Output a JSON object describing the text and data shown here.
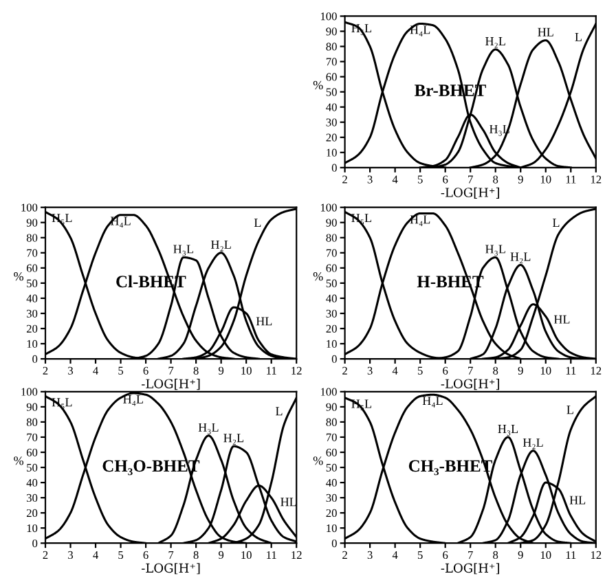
{
  "chart_data": [
    {
      "type": "line",
      "title": "Br-BHET",
      "xlabel": "-LOG[H⁺]",
      "ylabel": "%",
      "xlim": [
        2,
        12
      ],
      "ylim": [
        0,
        100
      ],
      "xticks": [
        2,
        3,
        4,
        5,
        6,
        7,
        8,
        9,
        10,
        11,
        12
      ],
      "yticks": [
        0,
        10,
        20,
        30,
        40,
        50,
        60,
        70,
        80,
        90,
        100
      ],
      "grid": false,
      "legend": false,
      "x": [
        2,
        2.5,
        3,
        3.5,
        4,
        4.5,
        5,
        5.5,
        6,
        6.5,
        7,
        7.5,
        8,
        8.5,
        9,
        9.5,
        10,
        10.5,
        11,
        11.5,
        12
      ],
      "series": [
        {
          "name": "H₅L",
          "color": "#000000",
          "values": [
            96,
            93,
            80,
            50,
            25,
            10,
            3,
            1,
            0,
            null,
            null,
            null,
            null,
            null,
            null,
            null,
            null,
            null,
            null,
            null,
            null
          ]
        },
        {
          "name": "H₄L",
          "color": "#000000",
          "values": [
            3,
            8,
            20,
            50,
            75,
            90,
            95,
            94,
            85,
            65,
            30,
            12,
            3,
            1,
            0,
            null,
            null,
            null,
            null,
            null,
            null
          ]
        },
        {
          "name": "H₃L",
          "color": "#000000",
          "values": [
            null,
            null,
            null,
            null,
            null,
            null,
            0,
            1,
            5,
            20,
            35,
            25,
            10,
            3,
            0,
            null,
            null,
            null,
            null,
            null,
            null
          ]
        },
        {
          "name": "H₂L",
          "color": "#000000",
          "values": [
            null,
            null,
            null,
            null,
            null,
            null,
            null,
            0,
            2,
            10,
            35,
            65,
            78,
            68,
            40,
            18,
            6,
            1,
            0,
            null,
            null
          ]
        },
        {
          "name": "HL",
          "color": "#000000",
          "values": [
            null,
            null,
            null,
            null,
            null,
            null,
            null,
            null,
            null,
            null,
            0,
            2,
            8,
            25,
            55,
            78,
            84,
            70,
            45,
            22,
            6
          ]
        },
        {
          "name": "L",
          "color": "#000000",
          "values": [
            null,
            null,
            null,
            null,
            null,
            null,
            null,
            null,
            null,
            null,
            null,
            null,
            null,
            null,
            0,
            3,
            12,
            28,
            50,
            78,
            95
          ]
        }
      ]
    },
    {
      "type": "line",
      "title": "Cl-BHET",
      "xlabel": "-LOG[H⁺]",
      "ylabel": "%",
      "xlim": [
        2,
        12
      ],
      "ylim": [
        0,
        100
      ],
      "xticks": [
        2,
        3,
        4,
        5,
        6,
        7,
        8,
        9,
        10,
        11,
        12
      ],
      "yticks": [
        0,
        10,
        20,
        30,
        40,
        50,
        60,
        70,
        80,
        90,
        100
      ],
      "grid": false,
      "legend": false,
      "x": [
        2,
        2.5,
        3,
        3.5,
        4,
        4.5,
        5,
        5.5,
        6,
        6.5,
        7,
        7.5,
        8,
        8.5,
        9,
        9.5,
        10,
        10.5,
        11,
        11.5,
        12
      ],
      "series": [
        {
          "name": "H₅L",
          "color": "#000000",
          "values": [
            97,
            92,
            80,
            55,
            30,
            12,
            4,
            1,
            0,
            null,
            null,
            null,
            null,
            null,
            null,
            null,
            null,
            null,
            null,
            null,
            null
          ]
        },
        {
          "name": "H₄L",
          "color": "#000000",
          "values": [
            3,
            8,
            20,
            45,
            70,
            88,
            95,
            95,
            88,
            72,
            50,
            28,
            12,
            4,
            1,
            0,
            null,
            null,
            null,
            null,
            null
          ]
        },
        {
          "name": "H₃L",
          "color": "#000000",
          "values": [
            null,
            null,
            null,
            null,
            null,
            null,
            null,
            0,
            2,
            10,
            35,
            67,
            65,
            40,
            15,
            4,
            1,
            0,
            null,
            null,
            null
          ]
        },
        {
          "name": "H₂L",
          "color": "#000000",
          "values": [
            null,
            null,
            null,
            null,
            null,
            null,
            null,
            null,
            null,
            0,
            2,
            10,
            35,
            60,
            70,
            55,
            25,
            8,
            2,
            0,
            null
          ]
        },
        {
          "name": "HL",
          "color": "#000000",
          "values": [
            null,
            null,
            null,
            null,
            null,
            null,
            null,
            null,
            null,
            null,
            null,
            0,
            1,
            5,
            18,
            34,
            30,
            12,
            3,
            1,
            0
          ]
        },
        {
          "name": "L",
          "color": "#000000",
          "values": [
            null,
            null,
            null,
            null,
            null,
            null,
            null,
            null,
            null,
            null,
            null,
            null,
            0,
            2,
            8,
            25,
            55,
            78,
            92,
            97,
            99
          ]
        }
      ]
    },
    {
      "type": "line",
      "title": "H-BHET",
      "xlabel": "-LOG[H⁺]",
      "ylabel": "%",
      "xlim": [
        2,
        12
      ],
      "ylim": [
        0,
        100
      ],
      "xticks": [
        2,
        3,
        4,
        5,
        6,
        7,
        8,
        9,
        10,
        11,
        12
      ],
      "yticks": [
        0,
        10,
        20,
        30,
        40,
        50,
        60,
        70,
        80,
        90,
        100
      ],
      "grid": false,
      "legend": false,
      "x": [
        2,
        2.5,
        3,
        3.5,
        4,
        4.5,
        5,
        5.5,
        6,
        6.5,
        7,
        7.5,
        8,
        8.5,
        9,
        9.5,
        10,
        10.5,
        11,
        11.5,
        12
      ],
      "series": [
        {
          "name": "H₅L",
          "color": "#000000",
          "values": [
            97,
            92,
            80,
            50,
            25,
            10,
            4,
            1,
            0,
            null,
            null,
            null,
            null,
            null,
            null,
            null,
            null,
            null,
            null,
            null,
            null
          ]
        },
        {
          "name": "H₄L",
          "color": "#000000",
          "values": [
            3,
            8,
            20,
            50,
            75,
            90,
            96,
            96,
            88,
            70,
            48,
            25,
            10,
            3,
            0,
            null,
            null,
            null,
            null,
            null,
            null
          ]
        },
        {
          "name": "H₃L",
          "color": "#000000",
          "values": [
            null,
            null,
            null,
            null,
            null,
            null,
            null,
            0,
            1,
            5,
            28,
            60,
            67,
            45,
            18,
            5,
            1,
            0,
            null,
            null,
            null
          ]
        },
        {
          "name": "H₂L",
          "color": "#000000",
          "values": [
            null,
            null,
            null,
            null,
            null,
            null,
            null,
            null,
            null,
            null,
            0,
            3,
            20,
            48,
            62,
            45,
            18,
            5,
            1,
            0,
            null
          ]
        },
        {
          "name": "HL",
          "color": "#000000",
          "values": [
            null,
            null,
            null,
            null,
            null,
            null,
            null,
            null,
            null,
            null,
            null,
            0,
            1,
            6,
            22,
            36,
            28,
            12,
            4,
            1,
            0
          ]
        },
        {
          "name": "L",
          "color": "#000000",
          "values": [
            null,
            null,
            null,
            null,
            null,
            null,
            null,
            null,
            null,
            null,
            null,
            null,
            0,
            1,
            6,
            28,
            55,
            82,
            92,
            97,
            99
          ]
        }
      ]
    },
    {
      "type": "line",
      "title": "CH₃O-BHET",
      "xlabel": "-LOG[H⁺]",
      "ylabel": "%",
      "xlim": [
        2,
        12
      ],
      "ylim": [
        0,
        100
      ],
      "xticks": [
        2,
        3,
        4,
        5,
        6,
        7,
        8,
        9,
        10,
        11,
        12
      ],
      "yticks": [
        0,
        10,
        20,
        30,
        40,
        50,
        60,
        70,
        80,
        90,
        100
      ],
      "grid": false,
      "legend": false,
      "x": [
        2,
        2.5,
        3,
        3.5,
        4,
        4.5,
        5,
        5.5,
        6,
        6.5,
        7,
        7.5,
        8,
        8.5,
        9,
        9.5,
        10,
        10.5,
        11,
        11.5,
        12
      ],
      "series": [
        {
          "name": "H₅L",
          "color": "#000000",
          "values": [
            97,
            92,
            80,
            55,
            30,
            12,
            4,
            1,
            0,
            null,
            null,
            null,
            null,
            null,
            null,
            null,
            null,
            null,
            null,
            null,
            null
          ]
        },
        {
          "name": "H₄L",
          "color": "#000000",
          "values": [
            3,
            8,
            20,
            45,
            70,
            88,
            96,
            99,
            98,
            92,
            80,
            60,
            35,
            15,
            4,
            1,
            0,
            null,
            null,
            null,
            null
          ]
        },
        {
          "name": "H₃L",
          "color": "#000000",
          "values": [
            null,
            null,
            null,
            null,
            null,
            null,
            null,
            null,
            null,
            0,
            5,
            25,
            55,
            71,
            55,
            28,
            10,
            3,
            0,
            null,
            null
          ]
        },
        {
          "name": "H₂L",
          "color": "#000000",
          "values": [
            null,
            null,
            null,
            null,
            null,
            null,
            null,
            null,
            null,
            null,
            null,
            0,
            2,
            10,
            35,
            64,
            60,
            38,
            15,
            4,
            1
          ]
        },
        {
          "name": "HL",
          "color": "#000000",
          "values": [
            null,
            null,
            null,
            null,
            null,
            null,
            null,
            null,
            null,
            null,
            null,
            null,
            null,
            0,
            3,
            12,
            28,
            38,
            30,
            15,
            4
          ]
        },
        {
          "name": "L",
          "color": "#000000",
          "values": [
            null,
            null,
            null,
            null,
            null,
            null,
            null,
            null,
            null,
            null,
            null,
            null,
            null,
            null,
            null,
            0,
            3,
            12,
            40,
            78,
            96
          ]
        }
      ]
    },
    {
      "type": "line",
      "title": "CH₃-BHET",
      "xlabel": "-LOG[H⁺]",
      "ylabel": "%",
      "xlim": [
        2,
        12
      ],
      "ylim": [
        0,
        100
      ],
      "xticks": [
        2,
        3,
        4,
        5,
        6,
        7,
        8,
        9,
        10,
        11,
        12
      ],
      "yticks": [
        0,
        10,
        20,
        30,
        40,
        50,
        60,
        70,
        80,
        90,
        100
      ],
      "grid": false,
      "legend": false,
      "x": [
        2,
        2.5,
        3,
        3.5,
        4,
        4.5,
        5,
        5.5,
        6,
        6.5,
        7,
        7.5,
        8,
        8.5,
        9,
        9.5,
        10,
        10.5,
        11,
        11.5,
        12
      ],
      "series": [
        {
          "name": "H₅L",
          "color": "#000000",
          "values": [
            96,
            92,
            80,
            52,
            27,
            10,
            3,
            1,
            0,
            null,
            null,
            null,
            null,
            null,
            null,
            null,
            null,
            null,
            null,
            null,
            null
          ]
        },
        {
          "name": "H₄L",
          "color": "#000000",
          "values": [
            3,
            8,
            20,
            48,
            73,
            90,
            97,
            98,
            96,
            88,
            75,
            55,
            30,
            12,
            3,
            0,
            null,
            null,
            null,
            null,
            null
          ]
        },
        {
          "name": "H₃L",
          "color": "#000000",
          "values": [
            null,
            null,
            null,
            null,
            null,
            null,
            null,
            null,
            null,
            0,
            4,
            22,
            55,
            70,
            48,
            22,
            6,
            1,
            0,
            null,
            null
          ]
        },
        {
          "name": "H₂L",
          "color": "#000000",
          "values": [
            null,
            null,
            null,
            null,
            null,
            null,
            null,
            null,
            null,
            null,
            null,
            0,
            2,
            15,
            45,
            61,
            45,
            20,
            6,
            1,
            0
          ]
        },
        {
          "name": "HL",
          "color": "#000000",
          "values": [
            null,
            null,
            null,
            null,
            null,
            null,
            null,
            null,
            null,
            null,
            null,
            null,
            null,
            0,
            4,
            18,
            40,
            36,
            18,
            6,
            1
          ]
        },
        {
          "name": "L",
          "color": "#000000",
          "values": [
            null,
            null,
            null,
            null,
            null,
            null,
            null,
            null,
            null,
            null,
            null,
            null,
            null,
            null,
            0,
            2,
            12,
            40,
            75,
            90,
            97
          ]
        }
      ]
    }
  ]
}
